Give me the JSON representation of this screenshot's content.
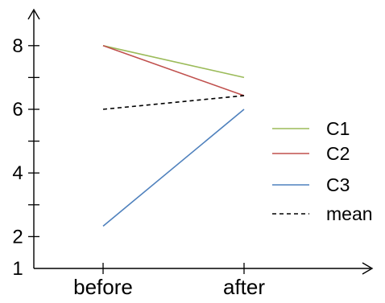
{
  "chart_data": {
    "type": "line",
    "categories": [
      "before",
      "after"
    ],
    "y_ticks": [
      {
        "value": 1,
        "label": "1"
      },
      {
        "value": 2,
        "label": "2"
      },
      {
        "value": 4,
        "label": "4"
      },
      {
        "value": 6,
        "label": "6"
      },
      {
        "value": 8,
        "label": "8"
      }
    ],
    "y_minor_ticks": [
      3,
      5,
      7
    ],
    "ylim": [
      1,
      8.7
    ],
    "series": [
      {
        "name": "C1",
        "values": [
          8.0,
          7.0
        ],
        "color": "#9bbb59",
        "dash": "solid"
      },
      {
        "name": "C2",
        "values": [
          8.0,
          6.43
        ],
        "color": "#c0504d",
        "dash": "solid"
      },
      {
        "name": "C3",
        "values": [
          2.33,
          6.0
        ],
        "color": "#4f81bd",
        "dash": "solid"
      },
      {
        "name": "mean",
        "values": [
          6.0,
          6.43
        ],
        "color": "#000000",
        "dash": "dashed"
      }
    ],
    "legend_position": "right",
    "grid": false,
    "axis_color": "#000000"
  }
}
